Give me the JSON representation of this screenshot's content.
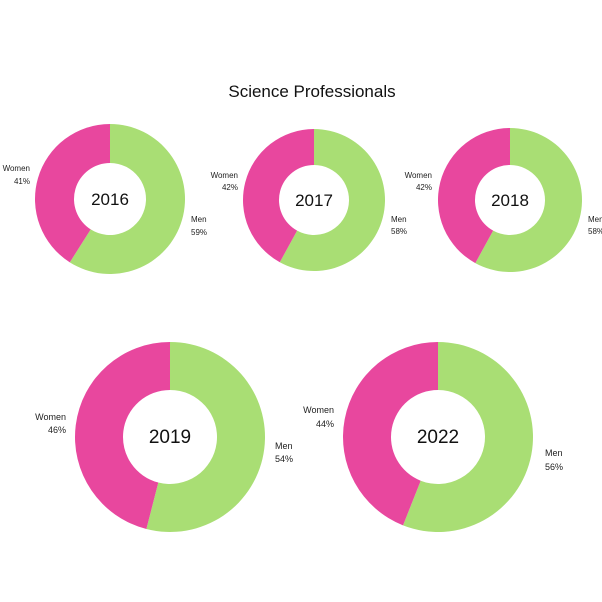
{
  "title": "Science Professionals",
  "colors": {
    "women": "#e8479e",
    "men": "#a9de74"
  },
  "chart_data": {
    "type": "pie",
    "title": "Science Professionals",
    "series_labels": [
      "Women",
      "Men"
    ],
    "charts": [
      {
        "year": "2016",
        "women": 41,
        "men": 59,
        "women_label": "41%",
        "men_label": "59%"
      },
      {
        "year": "2017",
        "women": 42,
        "men": 58,
        "women_label": "42%",
        "men_label": "58%"
      },
      {
        "year": "2018",
        "women": 42,
        "men": 58,
        "women_label": "42%",
        "men_label": "58%"
      },
      {
        "year": "2019",
        "women": 46,
        "men": 54,
        "women_label": "46%",
        "men_label": "54%"
      },
      {
        "year": "2022",
        "women": 44,
        "men": 56,
        "women_label": "44%",
        "men_label": "56%"
      }
    ]
  }
}
